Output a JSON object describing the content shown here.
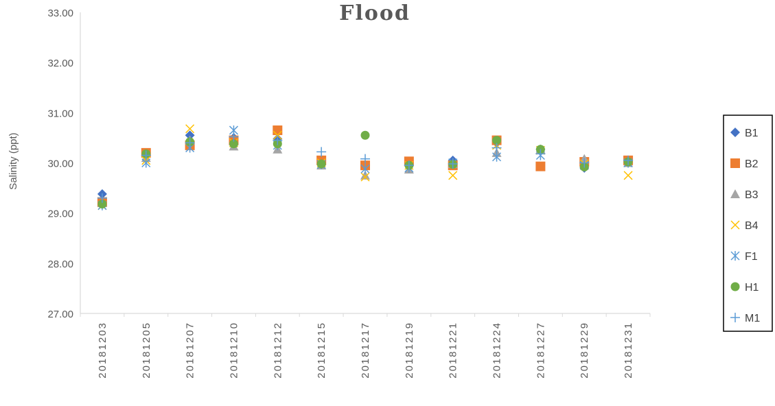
{
  "chart_data": {
    "type": "scatter",
    "title": "Flood",
    "ylabel": "Salinity (ppt)",
    "xlabel": "",
    "categories": [
      "20181203",
      "20181205",
      "20181207",
      "20181210",
      "20181212",
      "20181215",
      "20181217",
      "20181219",
      "20181221",
      "20181224",
      "20181227",
      "20181229",
      "20181231"
    ],
    "ylim": [
      27.0,
      33.0
    ],
    "yticks": [
      "27.00",
      "28.00",
      "29.00",
      "30.00",
      "31.00",
      "32.00",
      "33.00"
    ],
    "grid": false,
    "legend_position": "right",
    "series": [
      {
        "name": "B1",
        "marker": "diamond",
        "color": "#4472C4",
        "values": [
          29.38,
          30.15,
          30.55,
          30.5,
          30.48,
          30.05,
          29.95,
          30.0,
          30.05,
          30.4,
          30.27,
          29.9,
          30.02
        ]
      },
      {
        "name": "B2",
        "marker": "square",
        "color": "#ED7D31",
        "values": [
          29.22,
          30.2,
          30.35,
          30.45,
          30.65,
          30.05,
          29.95,
          30.03,
          29.95,
          30.45,
          29.93,
          30.02,
          30.05
        ]
      },
      {
        "name": "B3",
        "marker": "triangle",
        "color": "#A5A5A5",
        "values": [
          29.2,
          30.1,
          30.45,
          30.33,
          30.27,
          29.95,
          29.75,
          29.87,
          29.98,
          30.2,
          30.27,
          30.08,
          30.0
        ]
      },
      {
        "name": "B4",
        "marker": "x",
        "color": "#FFC000",
        "values": [
          29.15,
          30.05,
          30.68,
          30.4,
          30.55,
          30.0,
          29.72,
          29.95,
          29.75,
          30.35,
          30.25,
          29.98,
          29.75
        ]
      },
      {
        "name": "F1",
        "marker": "star",
        "color": "#5B9BD5",
        "values": [
          29.15,
          30.0,
          30.3,
          30.65,
          30.35,
          29.97,
          29.88,
          29.9,
          30.0,
          30.12,
          30.15,
          29.95,
          30.0
        ]
      },
      {
        "name": "H1",
        "marker": "circle",
        "color": "#70AD47",
        "values": [
          29.18,
          30.18,
          30.42,
          30.38,
          30.38,
          29.98,
          30.55,
          29.95,
          29.97,
          30.45,
          30.27,
          29.92,
          30.02
        ]
      },
      {
        "name": "M1",
        "marker": "plus",
        "color": "#5B9BD5",
        "values": [
          29.3,
          30.15,
          30.4,
          30.52,
          30.45,
          30.22,
          30.08,
          29.95,
          29.98,
          30.3,
          30.18,
          30.0,
          30.05
        ]
      }
    ]
  }
}
